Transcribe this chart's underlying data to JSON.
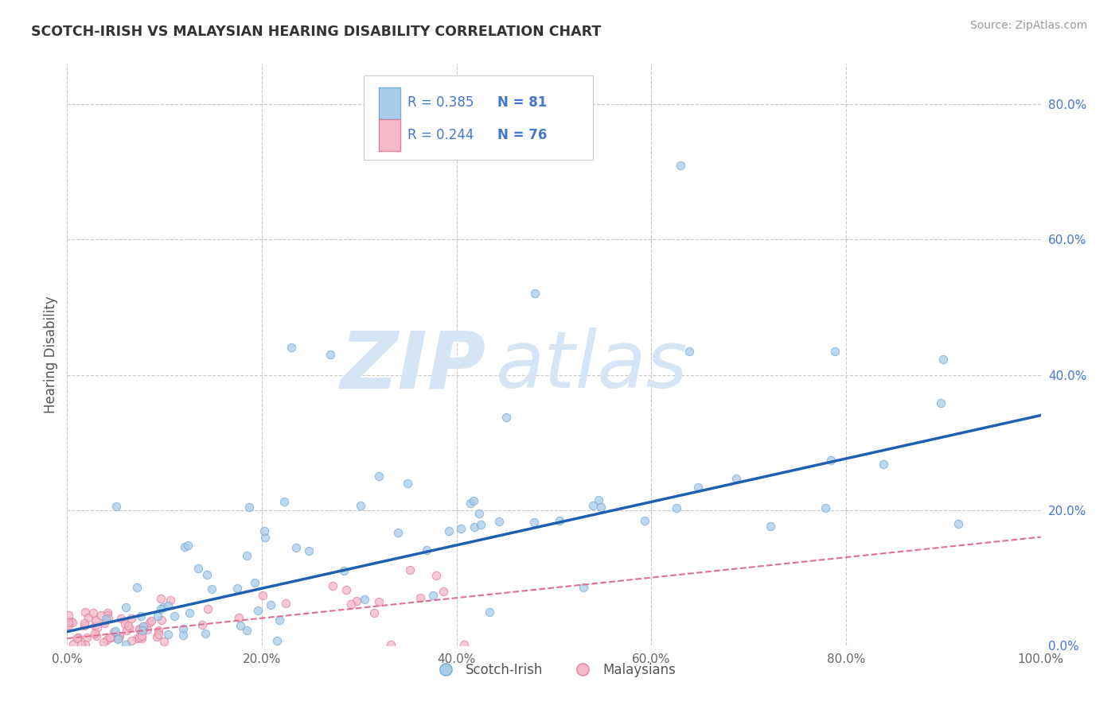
{
  "title": "SCOTCH-IRISH VS MALAYSIAN HEARING DISABILITY CORRELATION CHART",
  "source": "Source: ZipAtlas.com",
  "ylabel": "Hearing Disability",
  "legend_r": [
    "R = 0.385",
    "R = 0.244"
  ],
  "legend_n": [
    "N = 81",
    "N = 76"
  ],
  "scotch_irish_color": "#A8CCEA",
  "scotch_irish_edge_color": "#7AAED6",
  "malaysian_color": "#F4B8C8",
  "malaysian_edge_color": "#E080A0",
  "scotch_irish_line_color": "#2060B0",
  "malaysian_line_color": "#E07090",
  "background_color": "#FFFFFF",
  "grid_color": "#C8C8C8",
  "title_color": "#333333",
  "source_color": "#999999",
  "axis_color": "#4477CC",
  "watermark_color": "#D5E5F5",
  "watermark": "ZIPatlas",
  "xlim": [
    0.0,
    1.0
  ],
  "ylim": [
    0.0,
    0.86
  ],
  "xtick_vals": [
    0.0,
    0.2,
    0.4,
    0.6,
    0.8,
    1.0
  ],
  "xtick_labels": [
    "0.0%",
    "20.0%",
    "40.0%",
    "60.0%",
    "80.0%",
    "100.0%"
  ],
  "ytick_vals": [
    0.0,
    0.2,
    0.4,
    0.6,
    0.8
  ],
  "ytick_labels": [
    "0.0%",
    "20.0%",
    "40.0%",
    "60.0%",
    "80.0%"
  ],
  "si_trend": [
    0.02,
    0.34
  ],
  "m_trend": [
    0.01,
    0.16
  ]
}
